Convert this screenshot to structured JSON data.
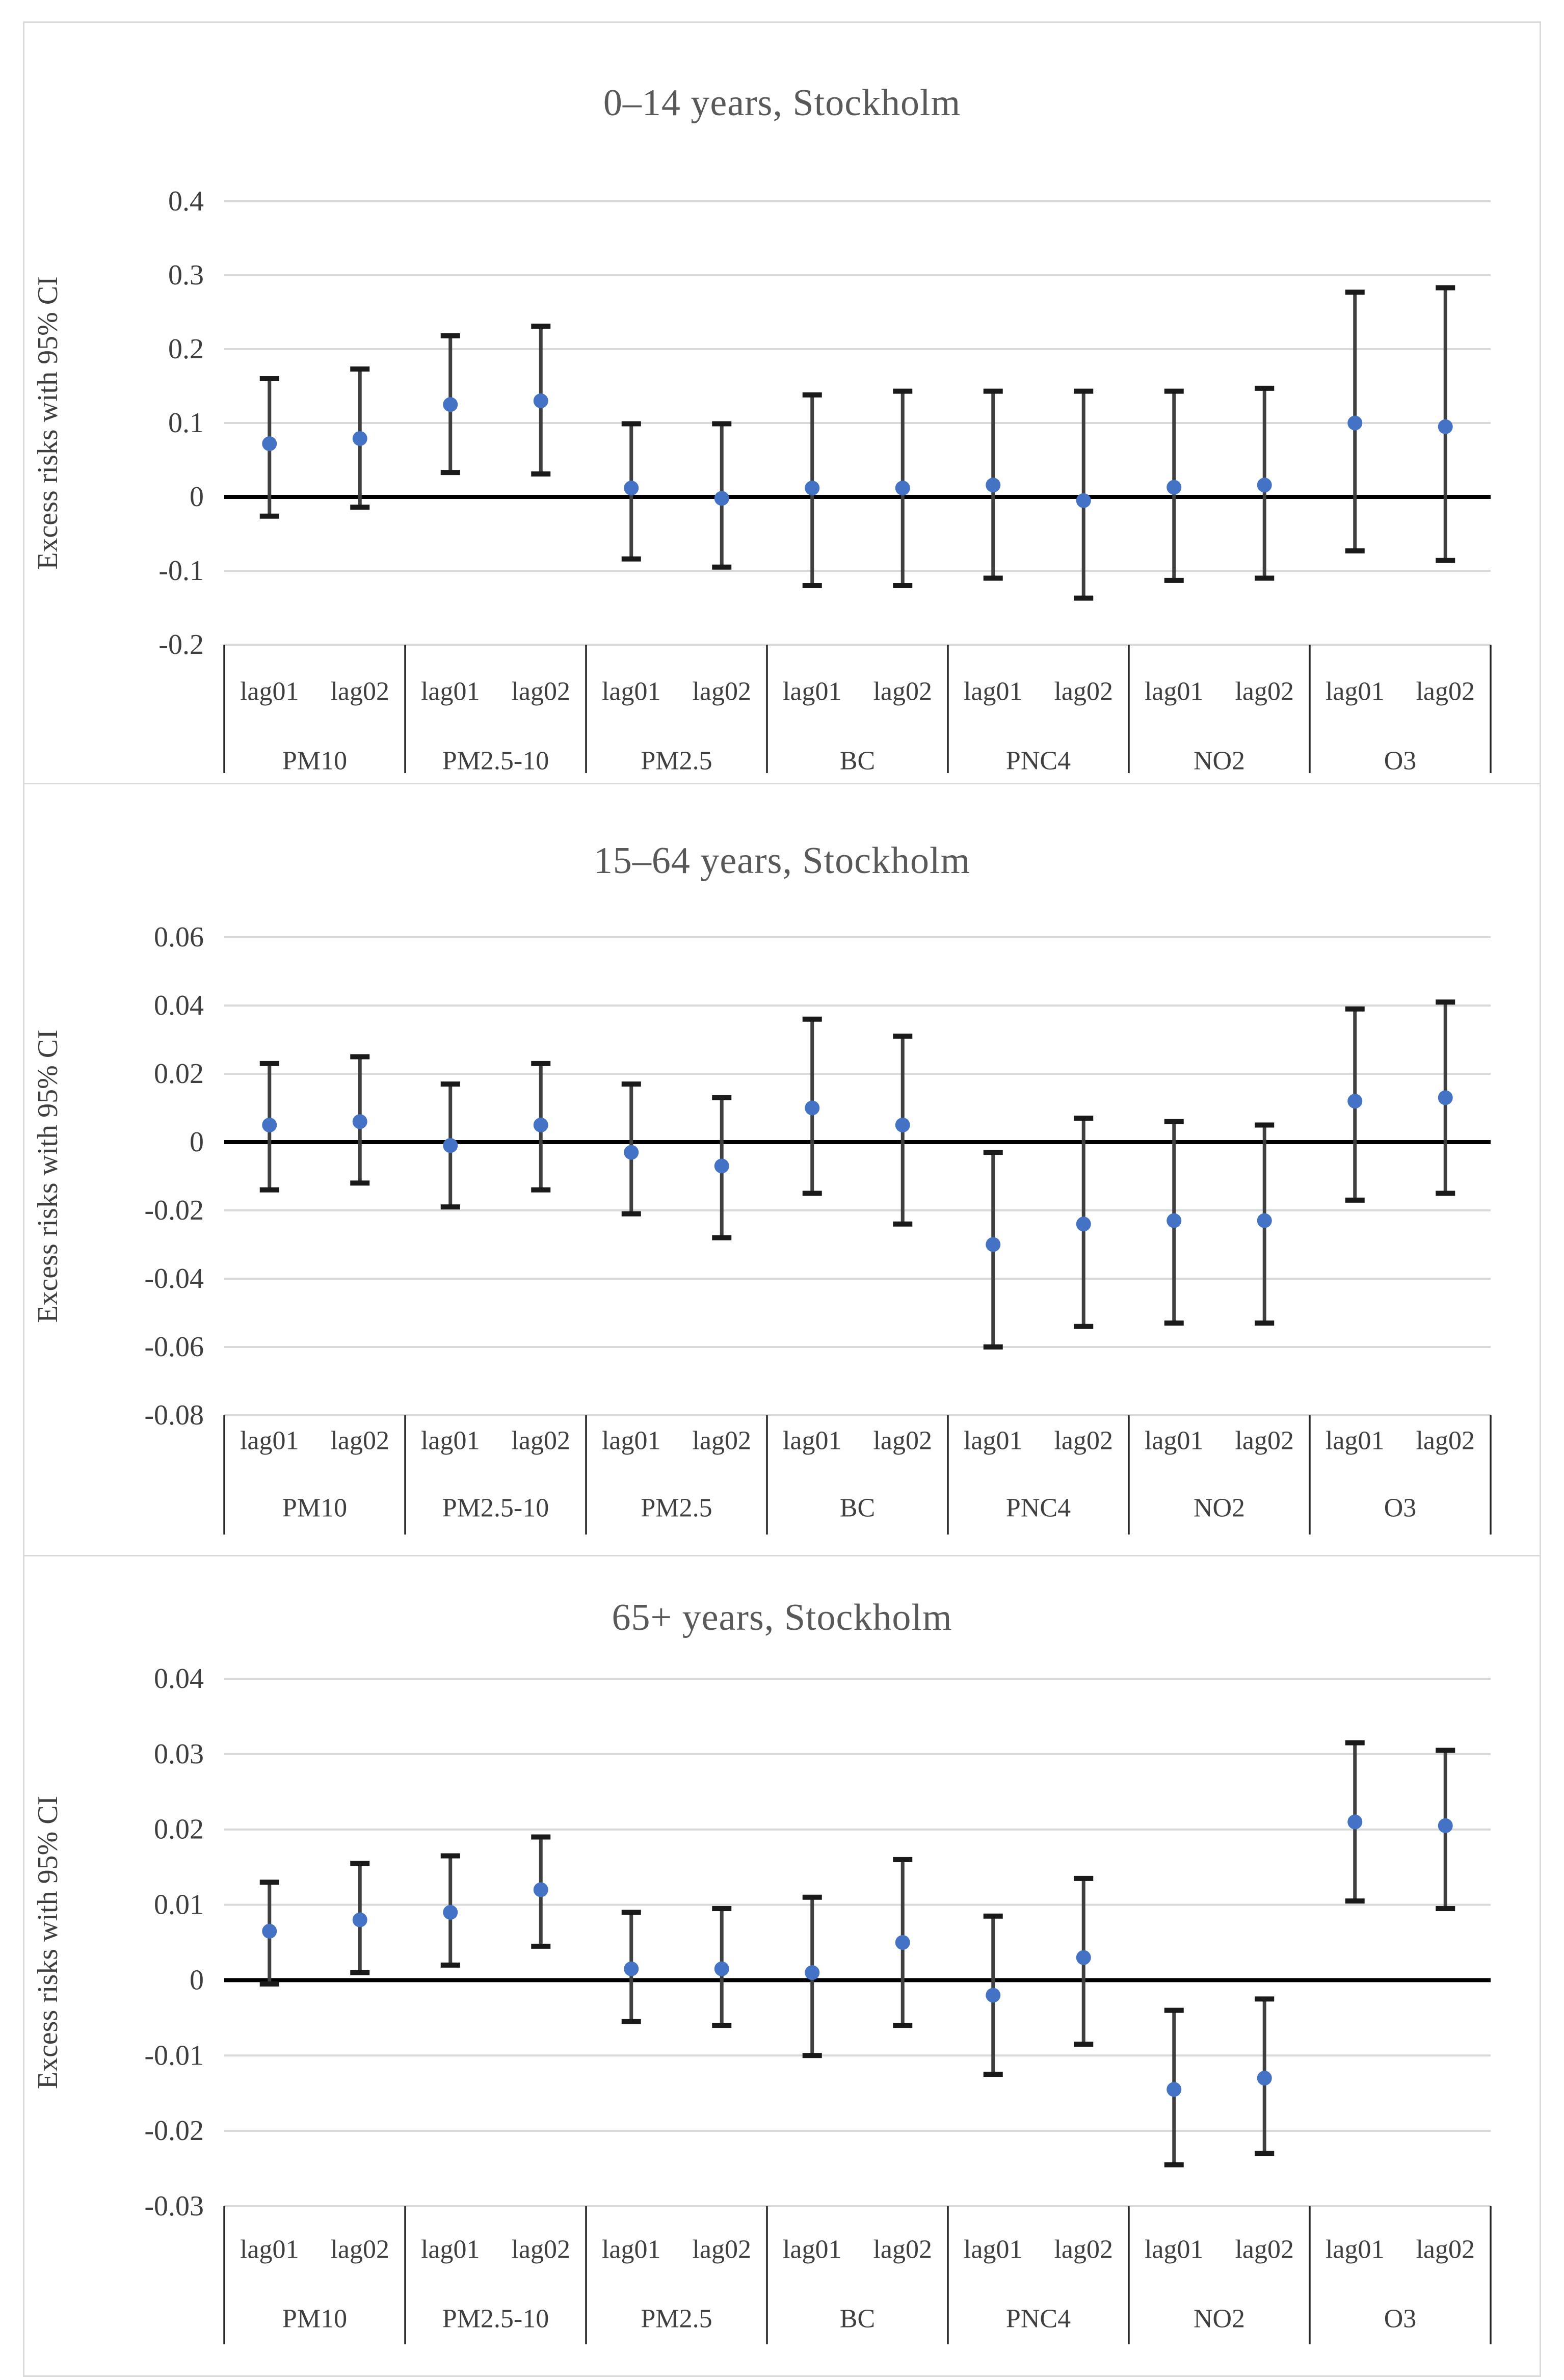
{
  "style": {
    "marker_color": "#4472C4",
    "errorbar_color": "#3F3F3F",
    "cap_color": "#1A1A1A",
    "gridline_color": "#D9D9D9",
    "zero_line_color": "#000000",
    "separator_color": "#262626",
    "tick_text_color": "#3F3F3F",
    "title_text_color": "#595959",
    "panel_border_color": "#D9D9D9"
  },
  "chart_data": [
    {
      "type": "scatter",
      "subtype": "point-estimates-with-95CI-errorbars",
      "title": "0–14 years, Stockholm",
      "ylabel": "Excess risks with 95% CI",
      "xlabel": "",
      "ylim": [
        -0.2,
        0.4
      ],
      "yticks": [
        0.4,
        0.3,
        0.2,
        0.1,
        0,
        -0.1,
        -0.2
      ],
      "ytick_labels": [
        "0.4",
        "0.3",
        "0.2",
        "0.1",
        "0",
        "-0.1",
        "-0.2"
      ],
      "grid": "horizontal",
      "legend": "none",
      "categories": [
        "PM10",
        "PM2.5-10",
        "PM2.5",
        "BC",
        "PNC4",
        "NO2",
        "O3"
      ],
      "lags": [
        "lag01",
        "lag02"
      ],
      "points": [
        {
          "category": "PM10",
          "lag": "lag01",
          "value": 0.072,
          "ci_low": -0.026,
          "ci_high": 0.16
        },
        {
          "category": "PM10",
          "lag": "lag02",
          "value": 0.079,
          "ci_low": -0.014,
          "ci_high": 0.173
        },
        {
          "category": "PM2.5-10",
          "lag": "lag01",
          "value": 0.125,
          "ci_low": 0.033,
          "ci_high": 0.218
        },
        {
          "category": "PM2.5-10",
          "lag": "lag02",
          "value": 0.13,
          "ci_low": 0.031,
          "ci_high": 0.231
        },
        {
          "category": "PM2.5",
          "lag": "lag01",
          "value": 0.012,
          "ci_low": -0.084,
          "ci_high": 0.099
        },
        {
          "category": "PM2.5",
          "lag": "lag02",
          "value": -0.002,
          "ci_low": -0.095,
          "ci_high": 0.099
        },
        {
          "category": "BC",
          "lag": "lag01",
          "value": 0.012,
          "ci_low": -0.12,
          "ci_high": 0.138
        },
        {
          "category": "BC",
          "lag": "lag02",
          "value": 0.012,
          "ci_low": -0.12,
          "ci_high": 0.143
        },
        {
          "category": "PNC4",
          "lag": "lag01",
          "value": 0.016,
          "ci_low": -0.11,
          "ci_high": 0.143
        },
        {
          "category": "PNC4",
          "lag": "lag02",
          "value": -0.005,
          "ci_low": -0.137,
          "ci_high": 0.143
        },
        {
          "category": "NO2",
          "lag": "lag01",
          "value": 0.013,
          "ci_low": -0.113,
          "ci_high": 0.143
        },
        {
          "category": "NO2",
          "lag": "lag02",
          "value": 0.016,
          "ci_low": -0.11,
          "ci_high": 0.147
        },
        {
          "category": "O3",
          "lag": "lag01",
          "value": 0.1,
          "ci_low": -0.073,
          "ci_high": 0.277
        },
        {
          "category": "O3",
          "lag": "lag02",
          "value": 0.095,
          "ci_low": -0.086,
          "ci_high": 0.283
        }
      ]
    },
    {
      "type": "scatter",
      "subtype": "point-estimates-with-95CI-errorbars",
      "title": "15–64 years, Stockholm",
      "ylabel": "Excess risks with 95% CI",
      "xlabel": "",
      "ylim": [
        -0.08,
        0.06
      ],
      "yticks": [
        0.06,
        0.04,
        0.02,
        0,
        -0.02,
        -0.04,
        -0.06,
        -0.08
      ],
      "ytick_labels": [
        "0.06",
        "0.04",
        "0.02",
        "0",
        "-0.02",
        "-0.04",
        "-0.06",
        "-0.08"
      ],
      "grid": "horizontal",
      "legend": "none",
      "categories": [
        "PM10",
        "PM2.5-10",
        "PM2.5",
        "BC",
        "PNC4",
        "NO2",
        "O3"
      ],
      "lags": [
        "lag01",
        "lag02"
      ],
      "points": [
        {
          "category": "PM10",
          "lag": "lag01",
          "value": 0.005,
          "ci_low": -0.014,
          "ci_high": 0.023
        },
        {
          "category": "PM10",
          "lag": "lag02",
          "value": 0.006,
          "ci_low": -0.012,
          "ci_high": 0.025
        },
        {
          "category": "PM2.5-10",
          "lag": "lag01",
          "value": -0.001,
          "ci_low": -0.019,
          "ci_high": 0.017
        },
        {
          "category": "PM2.5-10",
          "lag": "lag02",
          "value": 0.005,
          "ci_low": -0.014,
          "ci_high": 0.023
        },
        {
          "category": "PM2.5",
          "lag": "lag01",
          "value": -0.003,
          "ci_low": -0.021,
          "ci_high": 0.017
        },
        {
          "category": "PM2.5",
          "lag": "lag02",
          "value": -0.007,
          "ci_low": -0.028,
          "ci_high": 0.013
        },
        {
          "category": "BC",
          "lag": "lag01",
          "value": 0.01,
          "ci_low": -0.015,
          "ci_high": 0.036
        },
        {
          "category": "BC",
          "lag": "lag02",
          "value": 0.005,
          "ci_low": -0.024,
          "ci_high": 0.031
        },
        {
          "category": "PNC4",
          "lag": "lag01",
          "value": -0.03,
          "ci_low": -0.06,
          "ci_high": -0.003
        },
        {
          "category": "PNC4",
          "lag": "lag02",
          "value": -0.024,
          "ci_low": -0.054,
          "ci_high": 0.007
        },
        {
          "category": "NO2",
          "lag": "lag01",
          "value": -0.023,
          "ci_low": -0.053,
          "ci_high": 0.006
        },
        {
          "category": "NO2",
          "lag": "lag02",
          "value": -0.023,
          "ci_low": -0.053,
          "ci_high": 0.005
        },
        {
          "category": "O3",
          "lag": "lag01",
          "value": 0.012,
          "ci_low": -0.017,
          "ci_high": 0.039
        },
        {
          "category": "O3",
          "lag": "lag02",
          "value": 0.013,
          "ci_low": -0.015,
          "ci_high": 0.041
        }
      ]
    },
    {
      "type": "scatter",
      "subtype": "point-estimates-with-95CI-errorbars",
      "title": "65+ years, Stockholm",
      "ylabel": "Excess risks with 95% CI",
      "xlabel": "",
      "ylim": [
        -0.03,
        0.04
      ],
      "yticks": [
        0.04,
        0.03,
        0.02,
        0.01,
        0,
        -0.01,
        -0.02,
        -0.03
      ],
      "ytick_labels": [
        "0.04",
        "0.03",
        "0.02",
        "0.01",
        "0",
        "-0.01",
        "-0.02",
        "-0.03"
      ],
      "grid": "horizontal",
      "legend": "none",
      "categories": [
        "PM10",
        "PM2.5-10",
        "PM2.5",
        "BC",
        "PNC4",
        "NO2",
        "O3"
      ],
      "lags": [
        "lag01",
        "lag02"
      ],
      "points": [
        {
          "category": "PM10",
          "lag": "lag01",
          "value": 0.0065,
          "ci_low": -0.0005,
          "ci_high": 0.013
        },
        {
          "category": "PM10",
          "lag": "lag02",
          "value": 0.008,
          "ci_low": 0.001,
          "ci_high": 0.0155
        },
        {
          "category": "PM2.5-10",
          "lag": "lag01",
          "value": 0.009,
          "ci_low": 0.002,
          "ci_high": 0.0165
        },
        {
          "category": "PM2.5-10",
          "lag": "lag02",
          "value": 0.012,
          "ci_low": 0.0045,
          "ci_high": 0.019
        },
        {
          "category": "PM2.5",
          "lag": "lag01",
          "value": 0.0015,
          "ci_low": -0.0055,
          "ci_high": 0.009
        },
        {
          "category": "PM2.5",
          "lag": "lag02",
          "value": 0.0015,
          "ci_low": -0.006,
          "ci_high": 0.0095
        },
        {
          "category": "BC",
          "lag": "lag01",
          "value": 0.001,
          "ci_low": -0.01,
          "ci_high": 0.011
        },
        {
          "category": "BC",
          "lag": "lag02",
          "value": 0.005,
          "ci_low": -0.006,
          "ci_high": 0.016
        },
        {
          "category": "PNC4",
          "lag": "lag01",
          "value": -0.002,
          "ci_low": -0.0125,
          "ci_high": 0.0085
        },
        {
          "category": "PNC4",
          "lag": "lag02",
          "value": 0.003,
          "ci_low": -0.0085,
          "ci_high": 0.0135
        },
        {
          "category": "NO2",
          "lag": "lag01",
          "value": -0.0145,
          "ci_low": -0.0245,
          "ci_high": -0.004
        },
        {
          "category": "NO2",
          "lag": "lag02",
          "value": -0.013,
          "ci_low": -0.023,
          "ci_high": -0.0025
        },
        {
          "category": "O3",
          "lag": "lag01",
          "value": 0.021,
          "ci_low": 0.0105,
          "ci_high": 0.0315
        },
        {
          "category": "O3",
          "lag": "lag02",
          "value": 0.0205,
          "ci_low": 0.0095,
          "ci_high": 0.0305
        }
      ]
    }
  ]
}
